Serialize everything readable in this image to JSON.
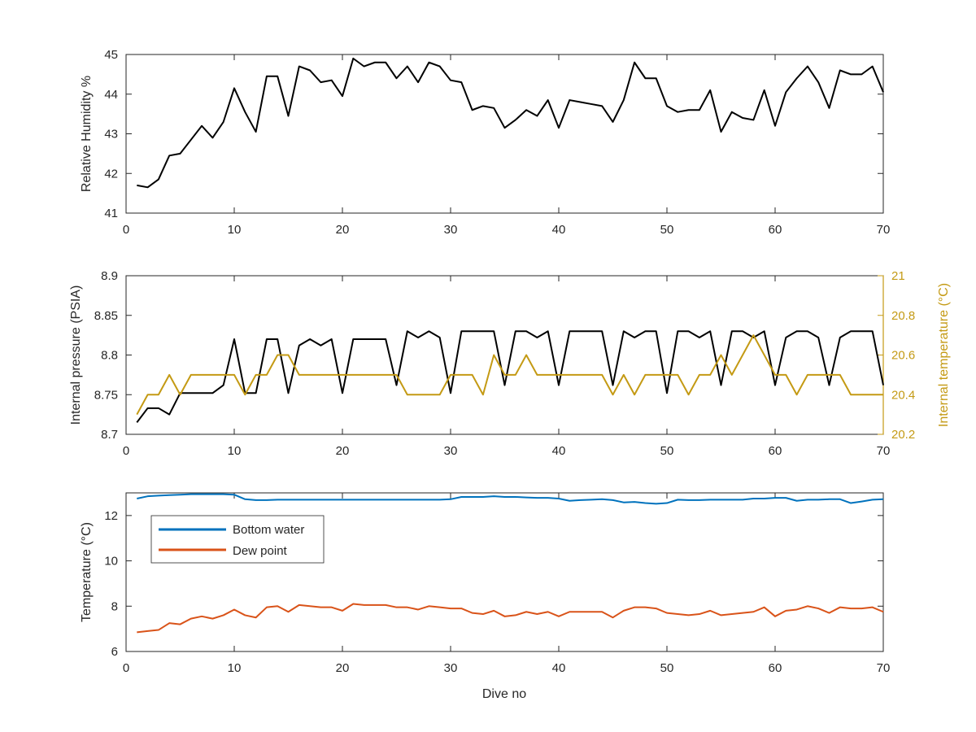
{
  "colors": {
    "black": "#000000",
    "bottom_water": "#0072bd",
    "dew_point": "#d95319",
    "internal_temperature": "#c49a14",
    "axes": "#262626",
    "background": "#ffffff"
  },
  "chart_data": [
    {
      "type": "line",
      "xlabel": "",
      "ylabel": "Relative Humidity %",
      "xlim": [
        0,
        70
      ],
      "ylim": [
        41,
        45
      ],
      "xticks": [
        0,
        10,
        20,
        30,
        40,
        50,
        60,
        70
      ],
      "yticks": [
        41,
        42,
        43,
        44,
        45
      ],
      "grid": false,
      "series": [
        {
          "color": "#000000",
          "x": [
            1,
            2,
            3,
            4,
            5,
            6,
            7,
            8,
            9,
            10,
            11,
            12,
            13,
            14,
            15,
            16,
            17,
            18,
            19,
            20,
            21,
            22,
            23,
            24,
            25,
            26,
            27,
            28,
            29,
            30,
            31,
            32,
            33,
            34,
            35,
            36,
            37,
            38,
            39,
            40,
            41,
            42,
            43,
            44,
            45,
            46,
            47,
            48,
            49,
            50,
            51,
            52,
            53,
            54,
            55,
            56,
            57,
            58,
            59,
            60,
            61,
            62,
            63,
            64,
            65,
            66,
            67,
            68,
            69,
            70
          ],
          "values": [
            41.7,
            41.65,
            41.85,
            42.45,
            42.5,
            42.85,
            43.2,
            42.9,
            43.3,
            44.15,
            43.55,
            43.05,
            44.45,
            44.45,
            43.45,
            44.7,
            44.6,
            44.3,
            44.35,
            43.95,
            44.9,
            44.7,
            44.8,
            44.8,
            44.4,
            44.7,
            44.3,
            44.8,
            44.7,
            44.35,
            44.3,
            43.6,
            43.7,
            43.65,
            43.15,
            43.35,
            43.6,
            43.45,
            43.85,
            43.15,
            43.85,
            43.8,
            43.75,
            43.7,
            43.3,
            43.85,
            44.8,
            44.4,
            44.4,
            43.7,
            43.55,
            43.6,
            43.6,
            44.1,
            43.05,
            43.55,
            43.4,
            43.35,
            44.1,
            43.2,
            44.05,
            44.4,
            44.7,
            44.3,
            43.65,
            44.6,
            44.5,
            44.5,
            44.7,
            44.05
          ]
        }
      ]
    },
    {
      "type": "line",
      "xlabel": "",
      "ylabel": "Internal pressure (PSIA)",
      "ylabel_right": "Internal temperature (°C)",
      "xlim": [
        0,
        70
      ],
      "ylim": [
        8.7,
        8.9
      ],
      "ylim_right": [
        20.2,
        21
      ],
      "xticks": [
        0,
        10,
        20,
        30,
        40,
        50,
        60,
        70
      ],
      "yticks": [
        "8.7",
        "8.75",
        "8.8",
        "8.85",
        "8.9"
      ],
      "yticks_right": [
        "20.2",
        "20.4",
        "20.6",
        "20.8",
        "21"
      ],
      "grid": false,
      "series": [
        {
          "axis": "left",
          "color": "#000000",
          "x": [
            1,
            2,
            3,
            4,
            5,
            6,
            7,
            8,
            9,
            10,
            11,
            12,
            13,
            14,
            15,
            16,
            17,
            18,
            19,
            20,
            21,
            22,
            23,
            24,
            25,
            26,
            27,
            28,
            29,
            30,
            31,
            32,
            33,
            34,
            35,
            36,
            37,
            38,
            39,
            40,
            41,
            42,
            43,
            44,
            45,
            46,
            47,
            48,
            49,
            50,
            51,
            52,
            53,
            54,
            55,
            56,
            57,
            58,
            59,
            60,
            61,
            62,
            63,
            64,
            65,
            66,
            67,
            68,
            69,
            70
          ],
          "values": [
            8.715,
            8.733,
            8.733,
            8.725,
            8.752,
            8.752,
            8.752,
            8.752,
            8.762,
            8.82,
            8.752,
            8.752,
            8.82,
            8.82,
            8.752,
            8.812,
            8.82,
            8.812,
            8.82,
            8.752,
            8.82,
            8.82,
            8.82,
            8.82,
            8.762,
            8.83,
            8.822,
            8.83,
            8.822,
            8.752,
            8.83,
            8.83,
            8.83,
            8.83,
            8.762,
            8.83,
            8.83,
            8.822,
            8.83,
            8.762,
            8.83,
            8.83,
            8.83,
            8.83,
            8.762,
            8.83,
            8.822,
            8.83,
            8.83,
            8.752,
            8.83,
            8.83,
            8.822,
            8.83,
            8.762,
            8.83,
            8.83,
            8.822,
            8.83,
            8.762,
            8.822,
            8.83,
            8.83,
            8.822,
            8.762,
            8.822,
            8.83,
            8.83,
            8.83,
            8.762
          ]
        },
        {
          "axis": "right",
          "color": "#c49a14",
          "x": [
            1,
            2,
            3,
            4,
            5,
            6,
            7,
            8,
            9,
            10,
            11,
            12,
            13,
            14,
            15,
            16,
            17,
            18,
            19,
            20,
            21,
            22,
            23,
            24,
            25,
            26,
            27,
            28,
            29,
            30,
            31,
            32,
            33,
            34,
            35,
            36,
            37,
            38,
            39,
            40,
            41,
            42,
            43,
            44,
            45,
            46,
            47,
            48,
            49,
            50,
            51,
            52,
            53,
            54,
            55,
            56,
            57,
            58,
            59,
            60,
            61,
            62,
            63,
            64,
            65,
            66,
            67,
            68,
            69,
            70
          ],
          "values": [
            20.3,
            20.4,
            20.4,
            20.5,
            20.4,
            20.5,
            20.5,
            20.5,
            20.5,
            20.5,
            20.4,
            20.5,
            20.5,
            20.6,
            20.6,
            20.5,
            20.5,
            20.5,
            20.5,
            20.5,
            20.5,
            20.5,
            20.5,
            20.5,
            20.5,
            20.4,
            20.4,
            20.4,
            20.4,
            20.5,
            20.5,
            20.5,
            20.4,
            20.6,
            20.5,
            20.5,
            20.6,
            20.5,
            20.5,
            20.5,
            20.5,
            20.5,
            20.5,
            20.5,
            20.4,
            20.5,
            20.4,
            20.5,
            20.5,
            20.5,
            20.5,
            20.4,
            20.5,
            20.5,
            20.6,
            20.5,
            20.6,
            20.7,
            20.6,
            20.5,
            20.5,
            20.4,
            20.5,
            20.5,
            20.5,
            20.5,
            20.4,
            20.4,
            20.4,
            20.4
          ]
        }
      ]
    },
    {
      "type": "line",
      "xlabel": "Dive no",
      "ylabel": "Temperature (°C)",
      "xlim": [
        0,
        70
      ],
      "ylim": [
        6,
        13
      ],
      "xticks": [
        0,
        10,
        20,
        30,
        40,
        50,
        60,
        70
      ],
      "yticks": [
        6,
        8,
        10,
        12
      ],
      "grid": false,
      "legend_position": "top-left",
      "series": [
        {
          "name": "Bottom water",
          "color": "#0072bd",
          "x": [
            1,
            2,
            3,
            4,
            5,
            6,
            7,
            8,
            9,
            10,
            11,
            12,
            13,
            14,
            15,
            16,
            17,
            18,
            19,
            20,
            21,
            22,
            23,
            24,
            25,
            26,
            27,
            28,
            29,
            30,
            31,
            32,
            33,
            34,
            35,
            36,
            37,
            38,
            39,
            40,
            41,
            42,
            43,
            44,
            45,
            46,
            47,
            48,
            49,
            50,
            51,
            52,
            53,
            54,
            55,
            56,
            57,
            58,
            59,
            60,
            61,
            62,
            63,
            64,
            65,
            66,
            67,
            68,
            69,
            70
          ],
          "values": [
            12.75,
            12.85,
            12.88,
            12.9,
            12.92,
            12.94,
            12.94,
            12.94,
            12.94,
            12.92,
            12.72,
            12.68,
            12.68,
            12.7,
            12.7,
            12.7,
            12.7,
            12.7,
            12.7,
            12.7,
            12.7,
            12.7,
            12.7,
            12.7,
            12.7,
            12.7,
            12.7,
            12.7,
            12.7,
            12.72,
            12.82,
            12.82,
            12.82,
            12.85,
            12.82,
            12.82,
            12.8,
            12.78,
            12.78,
            12.75,
            12.65,
            12.68,
            12.7,
            12.72,
            12.68,
            12.58,
            12.6,
            12.55,
            12.52,
            12.55,
            12.7,
            12.68,
            12.68,
            12.7,
            12.7,
            12.7,
            12.7,
            12.75,
            12.75,
            12.78,
            12.78,
            12.65,
            12.7,
            12.7,
            12.72,
            12.72,
            12.55,
            12.62,
            12.7,
            12.72
          ]
        },
        {
          "name": "Dew point",
          "color": "#d95319",
          "x": [
            1,
            2,
            3,
            4,
            5,
            6,
            7,
            8,
            9,
            10,
            11,
            12,
            13,
            14,
            15,
            16,
            17,
            18,
            19,
            20,
            21,
            22,
            23,
            24,
            25,
            26,
            27,
            28,
            29,
            30,
            31,
            32,
            33,
            34,
            35,
            36,
            37,
            38,
            39,
            40,
            41,
            42,
            43,
            44,
            45,
            46,
            47,
            48,
            49,
            50,
            51,
            52,
            53,
            54,
            55,
            56,
            57,
            58,
            59,
            60,
            61,
            62,
            63,
            64,
            65,
            66,
            67,
            68,
            69,
            70
          ],
          "values": [
            6.85,
            6.9,
            6.95,
            7.25,
            7.2,
            7.45,
            7.55,
            7.45,
            7.6,
            7.85,
            7.6,
            7.5,
            7.95,
            8.0,
            7.75,
            8.05,
            8.0,
            7.95,
            7.95,
            7.8,
            8.1,
            8.05,
            8.05,
            8.05,
            7.95,
            7.95,
            7.85,
            8.0,
            7.95,
            7.9,
            7.9,
            7.7,
            7.65,
            7.8,
            7.55,
            7.6,
            7.75,
            7.65,
            7.75,
            7.55,
            7.75,
            7.75,
            7.75,
            7.75,
            7.5,
            7.8,
            7.95,
            7.95,
            7.9,
            7.7,
            7.65,
            7.6,
            7.65,
            7.8,
            7.6,
            7.65,
            7.7,
            7.75,
            7.95,
            7.55,
            7.8,
            7.85,
            8.0,
            7.9,
            7.7,
            7.95,
            7.9,
            7.9,
            7.95,
            7.75
          ]
        }
      ]
    }
  ]
}
